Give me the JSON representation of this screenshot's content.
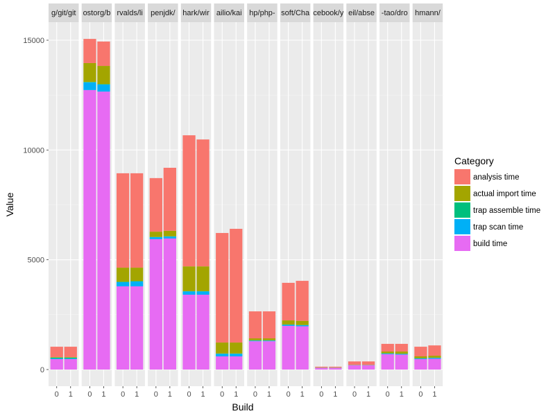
{
  "chart_data": {
    "type": "bar",
    "subtype": "stacked-faceted",
    "title": "",
    "xlabel": "Build",
    "ylabel": "Value",
    "ylim": [
      -800,
      16000
    ],
    "yticks": [
      0,
      5000,
      10000,
      15000
    ],
    "ytick_labels": [
      "0",
      "5000",
      "10000",
      "15000"
    ],
    "x_categories": [
      "0",
      "1"
    ],
    "grid": true,
    "legend": {
      "title": "Category",
      "position": "right",
      "entries": [
        {
          "name": "analysis time",
          "color": "#F8766D"
        },
        {
          "name": "actual import time",
          "color": "#A3A500"
        },
        {
          "name": "trap assemble time",
          "color": "#00BF7D"
        },
        {
          "name": "trap scan time",
          "color": "#00B0F6"
        },
        {
          "name": "build time",
          "color": "#E76BF3"
        }
      ]
    },
    "stack_order_bottom_to_top": [
      "build time",
      "trap scan time",
      "trap assemble time",
      "actual import time",
      "analysis time"
    ],
    "facets": [
      {
        "label": "g/git/git",
        "builds": [
          {
            "build": "0",
            "build time": 475,
            "trap scan time": 30,
            "trap assemble time": 40,
            "actual import time": 20,
            "analysis time": 475
          },
          {
            "build": "1",
            "build time": 475,
            "trap scan time": 30,
            "trap assemble time": 40,
            "actual import time": 20,
            "analysis time": 475
          }
        ]
      },
      {
        "label": "ostorg/b",
        "builds": [
          {
            "build": "0",
            "build time": 12730,
            "trap scan time": 350,
            "trap assemble time": 20,
            "actual import time": 860,
            "analysis time": 1100
          },
          {
            "build": "1",
            "build time": 12660,
            "trap scan time": 320,
            "trap assemble time": 20,
            "actual import time": 830,
            "analysis time": 1110
          }
        ]
      },
      {
        "label": "rvalds/li",
        "builds": [
          {
            "build": "0",
            "build time": 3790,
            "trap scan time": 190,
            "trap assemble time": 20,
            "actual import time": 640,
            "analysis time": 4300
          },
          {
            "build": "1",
            "build time": 3790,
            "trap scan time": 220,
            "trap assemble time": 20,
            "actual import time": 610,
            "analysis time": 4300
          }
        ]
      },
      {
        "label": "penjdk/",
        "builds": [
          {
            "build": "0",
            "build time": 5940,
            "trap scan time": 90,
            "trap assemble time": 10,
            "actual import time": 240,
            "analysis time": 2440
          },
          {
            "build": "1",
            "build time": 5970,
            "trap scan time": 90,
            "trap assemble time": 10,
            "actual import time": 250,
            "analysis time": 2870
          }
        ]
      },
      {
        "label": "hark/wir",
        "builds": [
          {
            "build": "0",
            "build time": 3410,
            "trap scan time": 150,
            "trap assemble time": 10,
            "actual import time": 1130,
            "analysis time": 5970
          },
          {
            "build": "1",
            "build time": 3410,
            "trap scan time": 150,
            "trap assemble time": 10,
            "actual import time": 1130,
            "analysis time": 5780
          }
        ]
      },
      {
        "label": "ailio/kai",
        "builds": [
          {
            "build": "0",
            "build time": 600,
            "trap scan time": 120,
            "trap assemble time": 10,
            "actual import time": 500,
            "analysis time": 4990
          },
          {
            "build": "1",
            "build time": 600,
            "trap scan time": 120,
            "trap assemble time": 10,
            "actual import time": 500,
            "analysis time": 5180
          }
        ]
      },
      {
        "label": "hp/php-",
        "builds": [
          {
            "build": "0",
            "build time": 1290,
            "trap scan time": 30,
            "trap assemble time": 10,
            "actual import time": 90,
            "analysis time": 1230
          },
          {
            "build": "1",
            "build time": 1290,
            "trap scan time": 30,
            "trap assemble time": 10,
            "actual import time": 90,
            "analysis time": 1230
          }
        ]
      },
      {
        "label": "soft/Cha",
        "builds": [
          {
            "build": "0",
            "build time": 1990,
            "trap scan time": 50,
            "trap assemble time": 10,
            "actual import time": 190,
            "analysis time": 1710
          },
          {
            "build": "1",
            "build time": 1970,
            "trap scan time": 50,
            "trap assemble time": 10,
            "actual import time": 190,
            "analysis time": 1820
          }
        ]
      },
      {
        "label": "cebook/y",
        "builds": [
          {
            "build": "0",
            "build time": 70,
            "trap scan time": 5,
            "trap assemble time": 5,
            "actual import time": 5,
            "analysis time": 45
          },
          {
            "build": "1",
            "build time": 70,
            "trap scan time": 5,
            "trap assemble time": 5,
            "actual import time": 5,
            "analysis time": 45
          }
        ]
      },
      {
        "label": "eil/abse",
        "builds": [
          {
            "build": "0",
            "build time": 200,
            "trap scan time": 5,
            "trap assemble time": 5,
            "actual import time": 10,
            "analysis time": 150
          },
          {
            "build": "1",
            "build time": 200,
            "trap scan time": 5,
            "trap assemble time": 5,
            "actual import time": 10,
            "analysis time": 150
          }
        ]
      },
      {
        "label": "-tao/dro",
        "builds": [
          {
            "build": "0",
            "build time": 700,
            "trap scan time": 30,
            "trap assemble time": 10,
            "actual import time": 80,
            "analysis time": 350
          },
          {
            "build": "1",
            "build time": 680,
            "trap scan time": 30,
            "trap assemble time": 10,
            "actual import time": 100,
            "analysis time": 350
          }
        ]
      },
      {
        "label": "hmann/",
        "builds": [
          {
            "build": "0",
            "build time": 475,
            "trap scan time": 30,
            "trap assemble time": 10,
            "actual import time": 85,
            "analysis time": 440
          },
          {
            "build": "1",
            "build time": 490,
            "trap scan time": 40,
            "trap assemble time": 10,
            "actual import time": 90,
            "analysis time": 470
          }
        ]
      }
    ]
  }
}
